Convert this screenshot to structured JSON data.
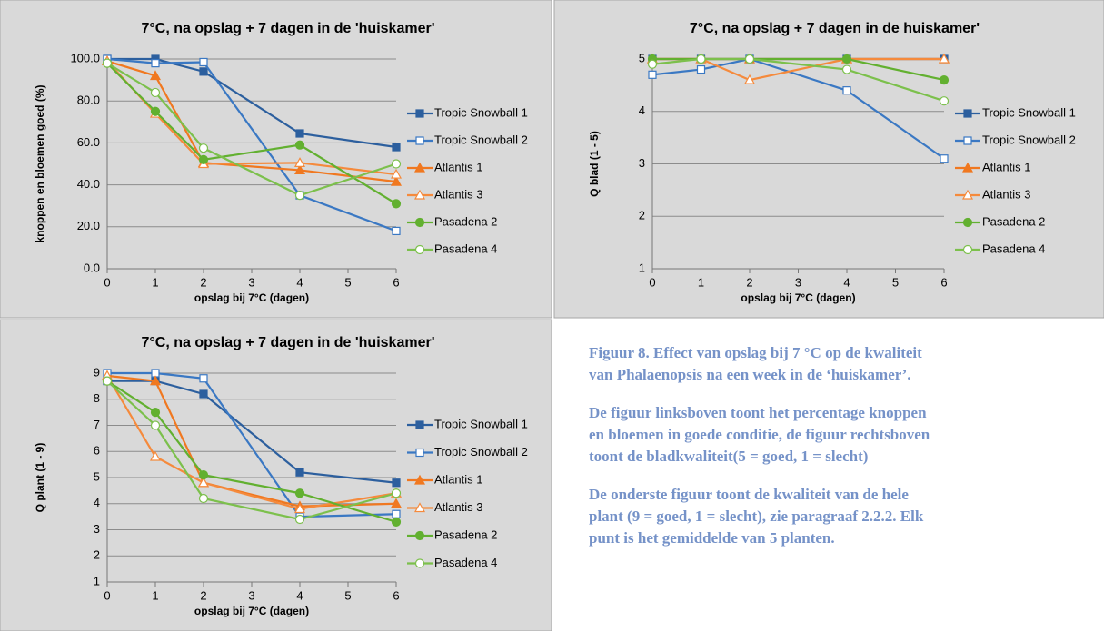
{
  "chart_data": [
    {
      "type": "line",
      "title": "7°C, na opslag + 7 dagen in de 'huiskamer'",
      "x_label": "opslag bij 7°C (dagen)",
      "y_label": "knoppen en bloemen goed (%)",
      "x": [
        0,
        1,
        2,
        4,
        6
      ],
      "xlim": [
        0,
        6
      ],
      "xticks": [
        0,
        1,
        2,
        3,
        4,
        5,
        6
      ],
      "ylim": [
        0,
        100
      ],
      "yticks": [
        {
          "value": 0,
          "label": "0.0"
        },
        {
          "value": 20,
          "label": "20.0"
        },
        {
          "value": 40,
          "label": "40.0"
        },
        {
          "value": 60,
          "label": "60.0"
        },
        {
          "value": 80,
          "label": "80.0"
        },
        {
          "value": 100,
          "label": "100.0"
        }
      ],
      "grid": true,
      "legend": "right",
      "series": [
        {
          "name": "Tropic Snowball 1",
          "color": "#2c5f9e",
          "marker": "square",
          "filled": true,
          "values": [
            100,
            100,
            94,
            64.5,
            58
          ]
        },
        {
          "name": "Tropic Snowball 2",
          "color": "#3a78c3",
          "marker": "square",
          "filled": false,
          "values": [
            100,
            98,
            98.5,
            35,
            18
          ]
        },
        {
          "name": "Atlantis 1",
          "color": "#f07820",
          "marker": "triangle",
          "filled": true,
          "values": [
            99,
            92,
            50.5,
            47,
            41.5
          ]
        },
        {
          "name": "Atlantis 3",
          "color": "#f58a3c",
          "marker": "triangle",
          "filled": false,
          "values": [
            99,
            74,
            50,
            50.5,
            45
          ]
        },
        {
          "name": "Pasadena 2",
          "color": "#62b030",
          "marker": "circle",
          "filled": true,
          "values": [
            98,
            75,
            52,
            59,
            31
          ]
        },
        {
          "name": "Pasadena 4",
          "color": "#7cc04c",
          "marker": "circle",
          "filled": false,
          "values": [
            98,
            84,
            57.5,
            35,
            50
          ]
        }
      ]
    },
    {
      "type": "line",
      "title": "7°C, na opslag + 7 dagen in de huiskamer'",
      "x_label": "opslag bij 7°C (dagen)",
      "y_label": "Q blad (1 - 5)",
      "x": [
        0,
        1,
        2,
        4,
        6
      ],
      "xlim": [
        0,
        6
      ],
      "xticks": [
        0,
        1,
        2,
        3,
        4,
        5,
        6
      ],
      "ylim": [
        1,
        5
      ],
      "yticks": [
        1,
        2,
        3,
        4,
        5
      ],
      "grid": true,
      "legend": "right",
      "series": [
        {
          "name": "Tropic Snowball 1",
          "color": "#2c5f9e",
          "marker": "square",
          "filled": true,
          "values": [
            5,
            5,
            5,
            5,
            5
          ]
        },
        {
          "name": "Tropic Snowball 2",
          "color": "#3a78c3",
          "marker": "square",
          "filled": false,
          "values": [
            4.7,
            4.8,
            5,
            4.4,
            3.1
          ]
        },
        {
          "name": "Atlantis 1",
          "color": "#f07820",
          "marker": "triangle",
          "filled": true,
          "values": [
            5,
            5,
            5,
            5,
            5
          ]
        },
        {
          "name": "Atlantis 3",
          "color": "#f58a3c",
          "marker": "triangle",
          "filled": false,
          "values": [
            5,
            5,
            4.6,
            5,
            5
          ]
        },
        {
          "name": "Pasadena 2",
          "color": "#62b030",
          "marker": "circle",
          "filled": true,
          "values": [
            5,
            5,
            5,
            5,
            4.6
          ]
        },
        {
          "name": "Pasadena 4",
          "color": "#7cc04c",
          "marker": "circle",
          "filled": false,
          "values": [
            4.9,
            5,
            5,
            4.8,
            4.2
          ]
        }
      ]
    },
    {
      "type": "line",
      "title": "7°C, na opslag + 7 dagen in de 'huiskamer'",
      "x_label": "opslag bij 7°C (dagen)",
      "y_label": "Q plant (1 - 9)",
      "x": [
        0,
        1,
        2,
        4,
        6
      ],
      "xlim": [
        0,
        6
      ],
      "xticks": [
        0,
        1,
        2,
        3,
        4,
        5,
        6
      ],
      "ylim": [
        1,
        9
      ],
      "yticks": [
        1,
        2,
        3,
        4,
        5,
        6,
        7,
        8,
        9
      ],
      "grid": true,
      "legend": "right",
      "series": [
        {
          "name": "Tropic Snowball 1",
          "color": "#2c5f9e",
          "marker": "square",
          "filled": true,
          "values": [
            8.7,
            8.7,
            8.2,
            5.2,
            4.8
          ]
        },
        {
          "name": "Tropic Snowball 2",
          "color": "#3a78c3",
          "marker": "square",
          "filled": false,
          "values": [
            9,
            9,
            8.8,
            3.5,
            3.6
          ]
        },
        {
          "name": "Atlantis 1",
          "color": "#f07820",
          "marker": "triangle",
          "filled": true,
          "values": [
            8.9,
            8.7,
            4.8,
            3.9,
            4.0
          ]
        },
        {
          "name": "Atlantis 3",
          "color": "#f58a3c",
          "marker": "triangle",
          "filled": false,
          "values": [
            8.9,
            5.8,
            4.8,
            3.8,
            4.4
          ]
        },
        {
          "name": "Pasadena 2",
          "color": "#62b030",
          "marker": "circle",
          "filled": true,
          "values": [
            8.7,
            7.5,
            5.1,
            4.4,
            3.3
          ]
        },
        {
          "name": "Pasadena 4",
          "color": "#7cc04c",
          "marker": "circle",
          "filled": false,
          "values": [
            8.7,
            7.0,
            4.2,
            3.4,
            4.4
          ]
        }
      ]
    }
  ],
  "caption": {
    "paragraphs": [
      [
        "Figuur 8.  Effect van opslag bij 7 °C op de kwaliteit",
        "van Phalaenopsis na een week in de ‘huiskamer’."
      ],
      [
        "De figuur linksboven toont het percentage knoppen",
        "en bloemen in goede conditie, de figuur rechtsboven",
        "toont de bladkwaliteit(5 = goed, 1 = slecht)"
      ],
      [
        "De onderste figuur toont de kwaliteit van de hele",
        "plant (9 = goed, 1 = slecht), zie paragraaf 2.2.2. Elk",
        "punt is het gemiddelde van 5 planten."
      ]
    ]
  }
}
